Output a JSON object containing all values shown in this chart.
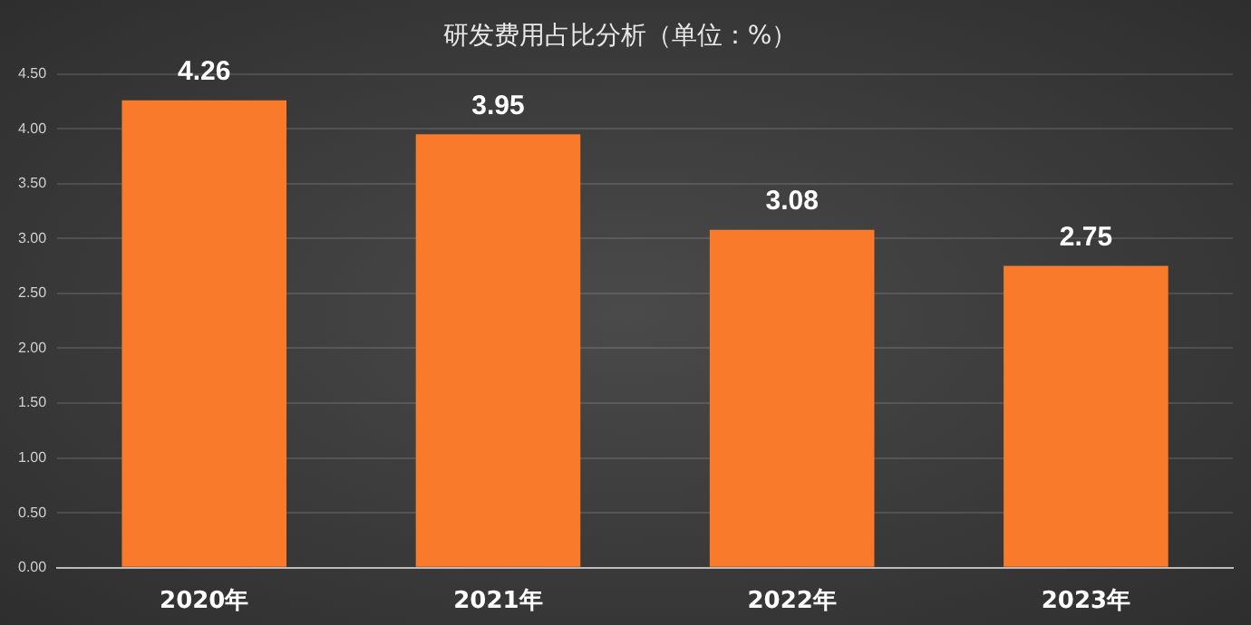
{
  "chart_data": {
    "type": "bar",
    "title": "研发费用占比分析（单位：%）",
    "categories": [
      "2020年",
      "2021年",
      "2022年",
      "2023年"
    ],
    "values": [
      4.26,
      3.95,
      3.08,
      2.75
    ],
    "color": "#fa7a2c",
    "ylim": [
      0,
      4.5
    ],
    "yticks": [
      {
        "value": 0,
        "label": "0.00"
      },
      {
        "value": 0.5,
        "label": "0.50"
      },
      {
        "value": 1,
        "label": "1.00"
      },
      {
        "value": 1.5,
        "label": "1.50"
      },
      {
        "value": 2,
        "label": "2.00"
      },
      {
        "value": 2.5,
        "label": "2.50"
      },
      {
        "value": 3,
        "label": "3.00"
      },
      {
        "value": 3.5,
        "label": "3.50"
      },
      {
        "value": 4,
        "label": "4.00"
      },
      {
        "value": 4.5,
        "label": "4.50"
      }
    ],
    "grid": "y",
    "data_labels": true,
    "legend": false
  }
}
